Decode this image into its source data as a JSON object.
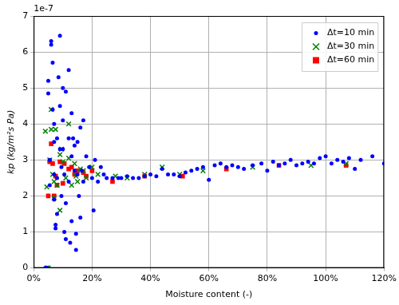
{
  "chart_data": {
    "type": "scatter",
    "x_label": "Moisture content (-)",
    "y_label": "kp (kg/m²s Pa)",
    "annotations": [
      "1e-7"
    ],
    "xlim": [
      0,
      120
    ],
    "xticks": [
      {
        "value": 0,
        "label": "0%"
      },
      {
        "value": 20,
        "label": "20%"
      },
      {
        "value": 40,
        "label": "40%"
      },
      {
        "value": 60,
        "label": "60%"
      },
      {
        "value": 80,
        "label": "80%"
      },
      {
        "value": 100,
        "label": "100%"
      },
      {
        "value": 120,
        "label": "120%"
      }
    ],
    "ylim": [
      0,
      7
    ],
    "yticks": [
      0,
      1,
      2,
      3,
      4,
      5,
      6,
      7
    ],
    "grid": true,
    "legend": "top-right",
    "series": [
      {
        "name": "Δt=10 min",
        "color": "#0000ff",
        "marker": "circle",
        "x": [
          4,
          4.5,
          5,
          5,
          5.5,
          5.5,
          6,
          6,
          6.5,
          6.5,
          7,
          7,
          7,
          7,
          7.5,
          7.5,
          8,
          8,
          8,
          8.5,
          9,
          9,
          9,
          9.5,
          9.5,
          10,
          10,
          10,
          10.5,
          10.5,
          11,
          11,
          11,
          12,
          12,
          12,
          12.5,
          13,
          13,
          13,
          13.5,
          14,
          14,
          14.5,
          14.5,
          15,
          15,
          15.5,
          16,
          16,
          16.5,
          17,
          17,
          18,
          19,
          20,
          20.5,
          21,
          22,
          23,
          24,
          25,
          27,
          29,
          30,
          32,
          34,
          36,
          38,
          40,
          42,
          44,
          46,
          48,
          50,
          52,
          54,
          56,
          58,
          60,
          62,
          64,
          66,
          68,
          70,
          72,
          75,
          78,
          80,
          82,
          84,
          86,
          88,
          90,
          92,
          94,
          96,
          98,
          100,
          102,
          104,
          106,
          108,
          110,
          112,
          116,
          120
        ],
        "values": [
          0,
          0,
          4.85,
          5.2,
          3.0,
          2.3,
          6.2,
          6.3,
          5.7,
          4.4,
          4.0,
          3.5,
          2.6,
          1.9,
          1.2,
          1.1,
          1.5,
          2.5,
          3.6,
          5.3,
          6.45,
          4.5,
          3.3,
          2.8,
          2.0,
          5.0,
          4.1,
          3.3,
          2.6,
          1.0,
          0.8,
          1.8,
          4.9,
          5.5,
          3.6,
          2.4,
          0.7,
          1.3,
          3.1,
          4.3,
          3.6,
          2.7,
          3.4,
          0.95,
          0.5,
          3.5,
          2.6,
          2.0,
          1.4,
          3.9,
          2.7,
          4.1,
          2.4,
          3.1,
          2.8,
          2.5,
          1.6,
          3.0,
          2.4,
          2.8,
          2.6,
          2.5,
          2.5,
          2.5,
          2.5,
          2.55,
          2.5,
          2.5,
          2.55,
          2.6,
          2.55,
          2.75,
          2.6,
          2.6,
          2.55,
          2.65,
          2.7,
          2.75,
          2.8,
          2.45,
          2.85,
          2.9,
          2.8,
          2.85,
          2.8,
          2.75,
          2.85,
          2.9,
          2.7,
          2.95,
          2.85,
          2.9,
          3.0,
          2.85,
          2.9,
          2.95,
          2.9,
          3.05,
          3.1,
          2.9,
          3.0,
          2.95,
          3.05,
          2.75,
          3.0,
          3.1,
          2.9
        ]
      },
      {
        "name": "Δt=30 min",
        "color": "#008000",
        "marker": "x",
        "x": [
          4,
          4.5,
          4.5,
          5,
          5.5,
          6,
          6,
          6.5,
          7,
          7,
          7.5,
          8,
          9,
          9,
          9.5,
          10,
          11,
          12,
          12,
          13,
          14,
          14.5,
          15,
          16,
          17,
          18,
          20,
          22,
          28,
          32,
          38,
          44,
          50,
          58,
          75,
          95,
          107
        ],
        "values": [
          3.8,
          2.25,
          0,
          0,
          3.0,
          3.85,
          4.4,
          2.6,
          1.95,
          2.4,
          3.85,
          2.3,
          3.15,
          1.6,
          3.3,
          2.95,
          2.5,
          4.0,
          3.05,
          2.3,
          2.9,
          2.55,
          2.4,
          2.75,
          2.7,
          2.5,
          2.8,
          2.6,
          2.55,
          2.5,
          2.6,
          2.8,
          2.6,
          2.7,
          2.8,
          2.85,
          2.9
        ]
      },
      {
        "name": "Δt=60 min",
        "color": "#ff0000",
        "marker": "square",
        "x": [
          5,
          5.5,
          6,
          6.5,
          7,
          7.5,
          8,
          9,
          10,
          10.5,
          12,
          13,
          14,
          15,
          17,
          18,
          20,
          27,
          38,
          51,
          66,
          84,
          107
        ],
        "values": [
          2.0,
          2.95,
          3.45,
          2.9,
          2.0,
          2.55,
          2.3,
          2.95,
          2.35,
          2.9,
          2.75,
          2.8,
          2.6,
          2.7,
          2.65,
          2.55,
          2.7,
          2.4,
          2.55,
          2.55,
          2.75,
          2.85,
          2.85
        ]
      }
    ]
  }
}
